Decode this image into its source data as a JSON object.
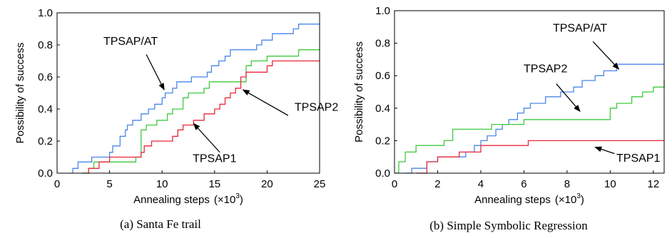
{
  "chart_data": [
    {
      "type": "line",
      "caption": "(a) Santa Fe trail",
      "xlabel": "Annealing steps",
      "xlabel_unit": "(×10",
      "xlabel_exp": "3",
      "xlabel_close": ")",
      "ylabel": "Possibility of success",
      "xlim": [
        0,
        25
      ],
      "ylim": [
        0,
        1
      ],
      "xticks": [
        0,
        5,
        10,
        15,
        20,
        25
      ],
      "xtick_labels": [
        "0",
        "5",
        "10",
        "15",
        "20",
        "25"
      ],
      "yticks": [
        0,
        0.2,
        0.4,
        0.6,
        0.8,
        1.0
      ],
      "ytick_labels": [
        "0.0",
        "0.2",
        "0.4",
        "0.6",
        "0.8",
        "1.0"
      ],
      "grid": false,
      "series": [
        {
          "name": "TPSAP/AT",
          "color": "#4a86e8",
          "x": [
            1.3,
            1.5,
            2.0,
            3.0,
            3.3,
            5.0,
            5.3,
            6.0,
            6.5,
            6.7,
            7.0,
            7.2,
            8.0,
            8.3,
            8.7,
            9.0,
            9.3,
            9.6,
            10.0,
            10.3,
            10.6,
            11.0,
            11.4,
            11.8,
            12.5,
            12.8,
            13.0,
            14.3,
            14.7,
            15.0,
            15.4,
            16.0,
            16.5,
            17.0,
            19.0,
            19.5,
            20.5,
            21.0,
            22.0,
            22.5,
            23.0,
            25.0
          ],
          "y": [
            0.0,
            0.03,
            0.07,
            0.07,
            0.1,
            0.13,
            0.17,
            0.23,
            0.27,
            0.3,
            0.3,
            0.33,
            0.37,
            0.37,
            0.4,
            0.4,
            0.43,
            0.43,
            0.47,
            0.5,
            0.5,
            0.53,
            0.57,
            0.57,
            0.57,
            0.6,
            0.6,
            0.63,
            0.67,
            0.67,
            0.7,
            0.73,
            0.77,
            0.77,
            0.8,
            0.83,
            0.87,
            0.87,
            0.87,
            0.9,
            0.93,
            0.93
          ]
        },
        {
          "name": "TPSAP2",
          "color": "#3ec93e",
          "x": [
            2.3,
            3.0,
            3.5,
            7.0,
            7.5,
            8.0,
            8.5,
            9.5,
            10.5,
            11.0,
            12.0,
            12.5,
            14.0,
            14.5,
            16.5,
            18.0,
            18.5,
            19.0,
            20.0,
            22.5,
            23.0,
            25.0
          ],
          "y": [
            0.0,
            0.03,
            0.07,
            0.07,
            0.1,
            0.27,
            0.3,
            0.33,
            0.37,
            0.4,
            0.47,
            0.5,
            0.53,
            0.57,
            0.57,
            0.67,
            0.7,
            0.7,
            0.73,
            0.73,
            0.77,
            0.77
          ]
        },
        {
          "name": "TPSAP1",
          "color": "#e8283c",
          "x": [
            2.5,
            3.0,
            4.0,
            5.0,
            8.0,
            8.3,
            9.0,
            10.0,
            11.0,
            11.5,
            12.0,
            13.0,
            14.0,
            15.0,
            15.5,
            16.0,
            16.5,
            17.0,
            17.5,
            18.0,
            20.0,
            20.5,
            21.0,
            25.0
          ],
          "y": [
            0.0,
            0.03,
            0.07,
            0.1,
            0.13,
            0.17,
            0.2,
            0.2,
            0.23,
            0.27,
            0.3,
            0.33,
            0.37,
            0.4,
            0.43,
            0.47,
            0.5,
            0.53,
            0.6,
            0.63,
            0.67,
            0.7,
            0.7,
            0.7
          ]
        }
      ],
      "annotations": [
        {
          "text": "TPSAP/AT",
          "tx": 7.0,
          "ty": 0.8,
          "ax": 10.2,
          "ay": 0.52,
          "lx": 8.5,
          "ly": 0.74
        },
        {
          "text": "TPSAP2",
          "tx": 24.7,
          "ty": 0.39,
          "ax": 17.7,
          "ay": 0.52,
          "lx": 22.0,
          "ly": 0.36
        },
        {
          "text": "TPSAP1",
          "tx": 15.0,
          "ty": 0.07,
          "ax": 13.0,
          "ay": 0.31,
          "lx": 15.5,
          "ly": 0.13
        }
      ]
    },
    {
      "type": "line",
      "caption": "(b) Simple Symbolic Regression",
      "xlabel": "Annealing steps",
      "xlabel_unit": "(×10",
      "xlabel_exp": "3",
      "xlabel_close": ")",
      "ylabel": "Possibility of success",
      "xlim": [
        0,
        12.5
      ],
      "ylim": [
        0,
        1
      ],
      "xticks": [
        0,
        2,
        4,
        6,
        8,
        10,
        12
      ],
      "xtick_labels": [
        "0",
        "2",
        "4",
        "6",
        "8",
        "10",
        "12"
      ],
      "yticks": [
        0,
        0.2,
        0.4,
        0.6,
        0.8,
        1.0
      ],
      "ytick_labels": [
        "0.0",
        "0.2",
        "0.4",
        "0.6",
        "0.8",
        "1.0"
      ],
      "grid": false,
      "series": [
        {
          "name": "TPSAP/AT",
          "color": "#4a86e8",
          "x": [
            0.5,
            0.8,
            1.5,
            2.0,
            3.0,
            3.3,
            3.7,
            4.0,
            4.3,
            4.7,
            5.0,
            5.3,
            5.7,
            6.0,
            6.3,
            6.7,
            7.0,
            7.3,
            7.7,
            8.0,
            8.3,
            8.7,
            9.0,
            9.3,
            9.7,
            10.0,
            10.3,
            10.7,
            11.0,
            12.5
          ],
          "y": [
            0.0,
            0.03,
            0.07,
            0.1,
            0.1,
            0.13,
            0.17,
            0.2,
            0.23,
            0.27,
            0.3,
            0.33,
            0.37,
            0.4,
            0.43,
            0.43,
            0.47,
            0.47,
            0.5,
            0.5,
            0.53,
            0.57,
            0.57,
            0.6,
            0.63,
            0.63,
            0.67,
            0.67,
            0.67,
            0.67
          ]
        },
        {
          "name": "TPSAP2",
          "color": "#3ec93e",
          "x": [
            0.0,
            0.2,
            0.5,
            1.0,
            2.0,
            2.3,
            2.7,
            4.0,
            4.5,
            5.5,
            6.0,
            7.0,
            8.0,
            9.0,
            10.0,
            10.3,
            10.6,
            11.0,
            11.5,
            12.0,
            12.5
          ],
          "y": [
            0.0,
            0.07,
            0.13,
            0.17,
            0.17,
            0.2,
            0.27,
            0.27,
            0.3,
            0.3,
            0.33,
            0.33,
            0.33,
            0.33,
            0.4,
            0.43,
            0.43,
            0.47,
            0.5,
            0.53,
            0.57
          ]
        },
        {
          "name": "TPSAP1",
          "color": "#e8283c",
          "x": [
            1.0,
            1.5,
            2.0,
            3.0,
            4.0,
            6.0,
            6.2,
            12.5
          ],
          "y": [
            0.0,
            0.07,
            0.1,
            0.13,
            0.17,
            0.17,
            0.2,
            0.2
          ]
        }
      ],
      "annotations": [
        {
          "text": "TPSAP/AT",
          "tx": 8.6,
          "ty": 0.87,
          "ax": 10.4,
          "ay": 0.64,
          "lx": 9.2,
          "ly": 0.81
        },
        {
          "text": "TPSAP2",
          "tx": 7.0,
          "ty": 0.62,
          "ax": 8.6,
          "ay": 0.38,
          "lx": 7.5,
          "ly": 0.55
        },
        {
          "text": "TPSAP1",
          "tx": 11.3,
          "ty": 0.07,
          "ax": 9.3,
          "ay": 0.16,
          "lx": 10.2,
          "ly": 0.12
        }
      ]
    }
  ]
}
